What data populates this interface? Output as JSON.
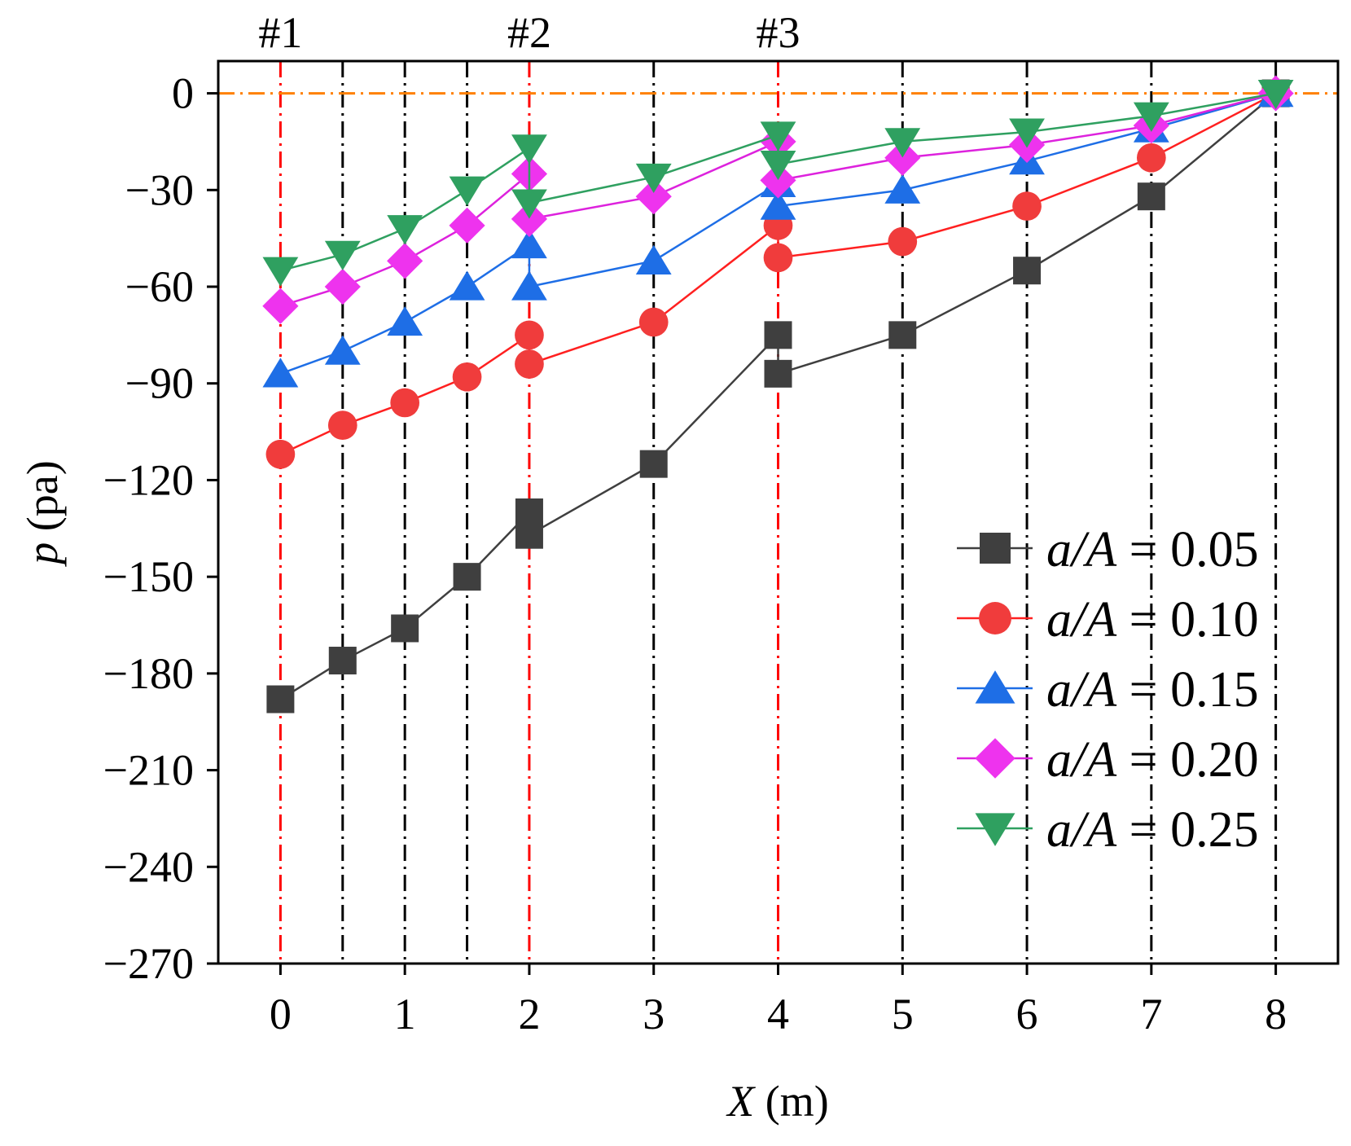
{
  "chart_data": {
    "type": "line",
    "xlabel": "X (m)",
    "ylabel": "p (pa)",
    "xlim": [
      -0.5,
      8.5
    ],
    "ylim": [
      -270,
      10
    ],
    "x_ticks": [
      0,
      1,
      2,
      3,
      4,
      5,
      6,
      7,
      8
    ],
    "x_tick_labels": [
      "0",
      "1",
      "2",
      "3",
      "4",
      "5",
      "6",
      "7",
      "8"
    ],
    "y_ticks": [
      0,
      -30,
      -60,
      -90,
      -120,
      -150,
      -180,
      -210,
      -240,
      -270
    ],
    "y_tick_labels": [
      "0",
      "−30",
      "−60",
      "−90",
      "−120",
      "−150",
      "−180",
      "−210",
      "−240",
      "−270"
    ],
    "grid": false,
    "legend_position": "right",
    "reference_lines": {
      "section_lines": [
        {
          "x": 0,
          "label": "#1",
          "color": "#ff0000"
        },
        {
          "x": 0.5,
          "label": "",
          "color": "#000000"
        },
        {
          "x": 1,
          "label": "",
          "color": "#000000"
        },
        {
          "x": 1.5,
          "label": "",
          "color": "#000000"
        },
        {
          "x": 2,
          "label": "#2",
          "color": "#ff0000"
        },
        {
          "x": 3,
          "label": "",
          "color": "#000000"
        },
        {
          "x": 4,
          "label": "#3",
          "color": "#ff0000"
        },
        {
          "x": 5,
          "label": "",
          "color": "#000000"
        },
        {
          "x": 6,
          "label": "",
          "color": "#000000"
        },
        {
          "x": 7,
          "label": "",
          "color": "#000000"
        },
        {
          "x": 8,
          "label": "",
          "color": "#000000"
        }
      ],
      "zero_line": {
        "y": 0,
        "color": "#ff8000"
      }
    },
    "series": [
      {
        "name_italic": "a/A",
        "name_value": " = 0.05",
        "color": "#3f3f3f",
        "line_color": "#3f3f3f",
        "marker": "square",
        "x": [
          0,
          0.5,
          1,
          1.5,
          2,
          2,
          3,
          4,
          4,
          5,
          6,
          7,
          8
        ],
        "y": [
          -188,
          -176,
          -166,
          -150,
          -130,
          -137,
          -115,
          -75,
          -87,
          -75,
          -55,
          -32,
          0
        ]
      },
      {
        "name_italic": "a/A",
        "name_value": " = 0.10",
        "color": "#f03c3c",
        "line_color": "#ff2020",
        "marker": "circle",
        "x": [
          0,
          0.5,
          1,
          1.5,
          2,
          2,
          3,
          4,
          4,
          5,
          6,
          7,
          8
        ],
        "y": [
          -112,
          -103,
          -96,
          -88,
          -75,
          -84,
          -71,
          -41,
          -51,
          -46,
          -35,
          -20,
          0
        ]
      },
      {
        "name_italic": "a/A",
        "name_value": " = 0.15",
        "color": "#1e6ee6",
        "line_color": "#1e6ee6",
        "marker": "triangle-up",
        "x": [
          0,
          0.5,
          1,
          1.5,
          2,
          2,
          3,
          4,
          4,
          5,
          6,
          7,
          8
        ],
        "y": [
          -87,
          -80,
          -71,
          -60,
          -47,
          -60,
          -52,
          -28,
          -35,
          -30,
          -21,
          -11,
          0
        ]
      },
      {
        "name_italic": "a/A",
        "name_value": " = 0.20",
        "color": "#ee33ee",
        "line_color": "#dd22dd",
        "marker": "diamond",
        "x": [
          0,
          0.5,
          1,
          1.5,
          2,
          2,
          3,
          4,
          4,
          5,
          6,
          7,
          8
        ],
        "y": [
          -66,
          -60,
          -52,
          -41,
          -25,
          -39,
          -32,
          -15,
          -27,
          -20,
          -16,
          -10,
          0
        ]
      },
      {
        "name_italic": "a/A",
        "name_value": " = 0.25",
        "color": "#2fa060",
        "line_color": "#2fa060",
        "marker": "triangle-down",
        "x": [
          0,
          0.5,
          1,
          1.5,
          2,
          2,
          3,
          4,
          4,
          5,
          6,
          7,
          8
        ],
        "y": [
          -55,
          -50,
          -42,
          -30,
          -17,
          -34,
          -26,
          -13,
          -22,
          -15,
          -12,
          -7,
          0
        ]
      }
    ]
  }
}
